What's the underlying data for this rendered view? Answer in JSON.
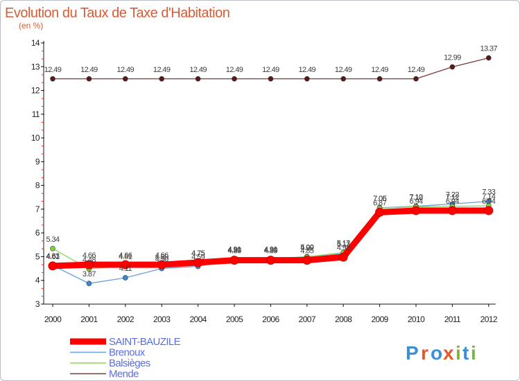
{
  "chart_data": {
    "type": "line",
    "title": "Evolution du Taux de Taxe d'Habitation",
    "subtitle": "(en %)",
    "xlabel": "",
    "ylabel": "",
    "ylim": [
      3,
      14
    ],
    "y_ticks": [
      3,
      4,
      5,
      6,
      7,
      8,
      9,
      10,
      11,
      12,
      13,
      14
    ],
    "categories": [
      "2000",
      "2001",
      "2002",
      "2003",
      "2004",
      "2005",
      "2006",
      "2007",
      "2008",
      "2009",
      "2010",
      "2011",
      "2012"
    ],
    "grid": false,
    "legend_position": "bottom-left",
    "series": [
      {
        "name": "Mende",
        "color": "#7a3838",
        "marker": "#5a1a1a",
        "width": 1.3,
        "values": [
          12.49,
          12.49,
          12.49,
          12.49,
          12.49,
          12.49,
          12.49,
          12.49,
          12.49,
          12.49,
          12.49,
          12.99,
          13.37
        ],
        "labels": [
          "12.49",
          "12.49",
          "12.49",
          "12.49",
          "12.49",
          "12.49",
          "12.49",
          "12.49",
          "12.49",
          "12.49",
          "12.49",
          "12.99",
          "13.37"
        ]
      },
      {
        "name": "Brenoux",
        "color": "#6b9fd8",
        "marker": "#3e86cf",
        "width": 1.3,
        "values": [
          4.63,
          3.87,
          4.11,
          4.5,
          4.59,
          4.9,
          4.9,
          5.0,
          5.13,
          7.06,
          7.12,
          7.22,
          7.33
        ],
        "labels": [
          "4.63",
          "3.87",
          "4.11",
          "4.50",
          "4.59",
          "4.90",
          "4.90",
          "5.00",
          "5.13",
          "7.06",
          "7.12",
          "7.22",
          "7.33"
        ]
      },
      {
        "name": "Balsièges",
        "color": "#88d85a",
        "marker": "#7fd23c",
        "width": 1.3,
        "values": [
          5.34,
          4.48,
          4.61,
          4.59,
          4.75,
          4.91,
          4.91,
          4.99,
          5.17,
          7.05,
          7.1,
          7.12,
          7.14
        ],
        "labels": [
          "5.34",
          "4.48",
          "4.61",
          "4.59",
          "4.75",
          "4.91",
          "4.91",
          "4.99",
          "5.17",
          "7.05",
          "7.10",
          "7.12",
          "7.14"
        ]
      },
      {
        "name": "SAINT-BAUZILE",
        "color": "#ff0000",
        "marker": "#ff0000",
        "width": 9,
        "values": [
          4.61,
          4.66,
          4.66,
          4.66,
          4.75,
          4.85,
          4.85,
          4.85,
          4.98,
          6.87,
          6.94,
          6.94,
          6.94
        ],
        "labels": [
          "4.61",
          "4.66",
          "4.66",
          "4.66",
          "4.75",
          "4.85",
          "4.85",
          "4.85",
          "4.98",
          "6.87",
          "6.94",
          "6.94",
          "6.94"
        ]
      }
    ],
    "legend": [
      "SAINT-BAUZILE",
      "Brenoux",
      "Balsièges",
      "Mende"
    ]
  },
  "logo": {
    "letters": [
      "P",
      "r",
      "o",
      "x",
      "i",
      "t",
      "i"
    ]
  },
  "colors": {
    "title": "#d75b34",
    "legend_text": "#5b6ee0",
    "axis": "#111111"
  }
}
